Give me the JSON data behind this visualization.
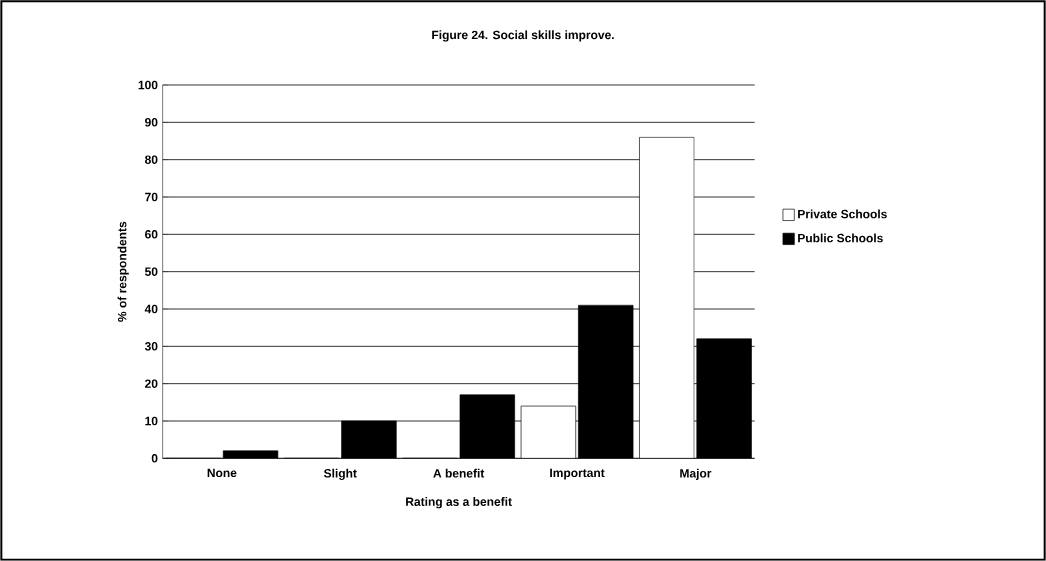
{
  "chart_data": {
    "type": "bar",
    "title": "Figure 24. Social skills improve.",
    "xlabel": "Rating as a benefit",
    "ylabel": "% of respondents",
    "categories": [
      "None",
      "Slight",
      "A benefit",
      "Important",
      "Major"
    ],
    "series": [
      {
        "name": "Private Schools",
        "color": "#ffffff",
        "values": [
          0,
          0,
          0,
          14,
          86
        ]
      },
      {
        "name": "Public Schools",
        "color": "#000000",
        "values": [
          2,
          10,
          17,
          41,
          32
        ]
      }
    ],
    "ylim": [
      0,
      100
    ],
    "yticks": [
      0,
      10,
      20,
      30,
      40,
      50,
      60,
      70,
      80,
      90,
      100
    ],
    "grid": "y",
    "legend": "right"
  }
}
